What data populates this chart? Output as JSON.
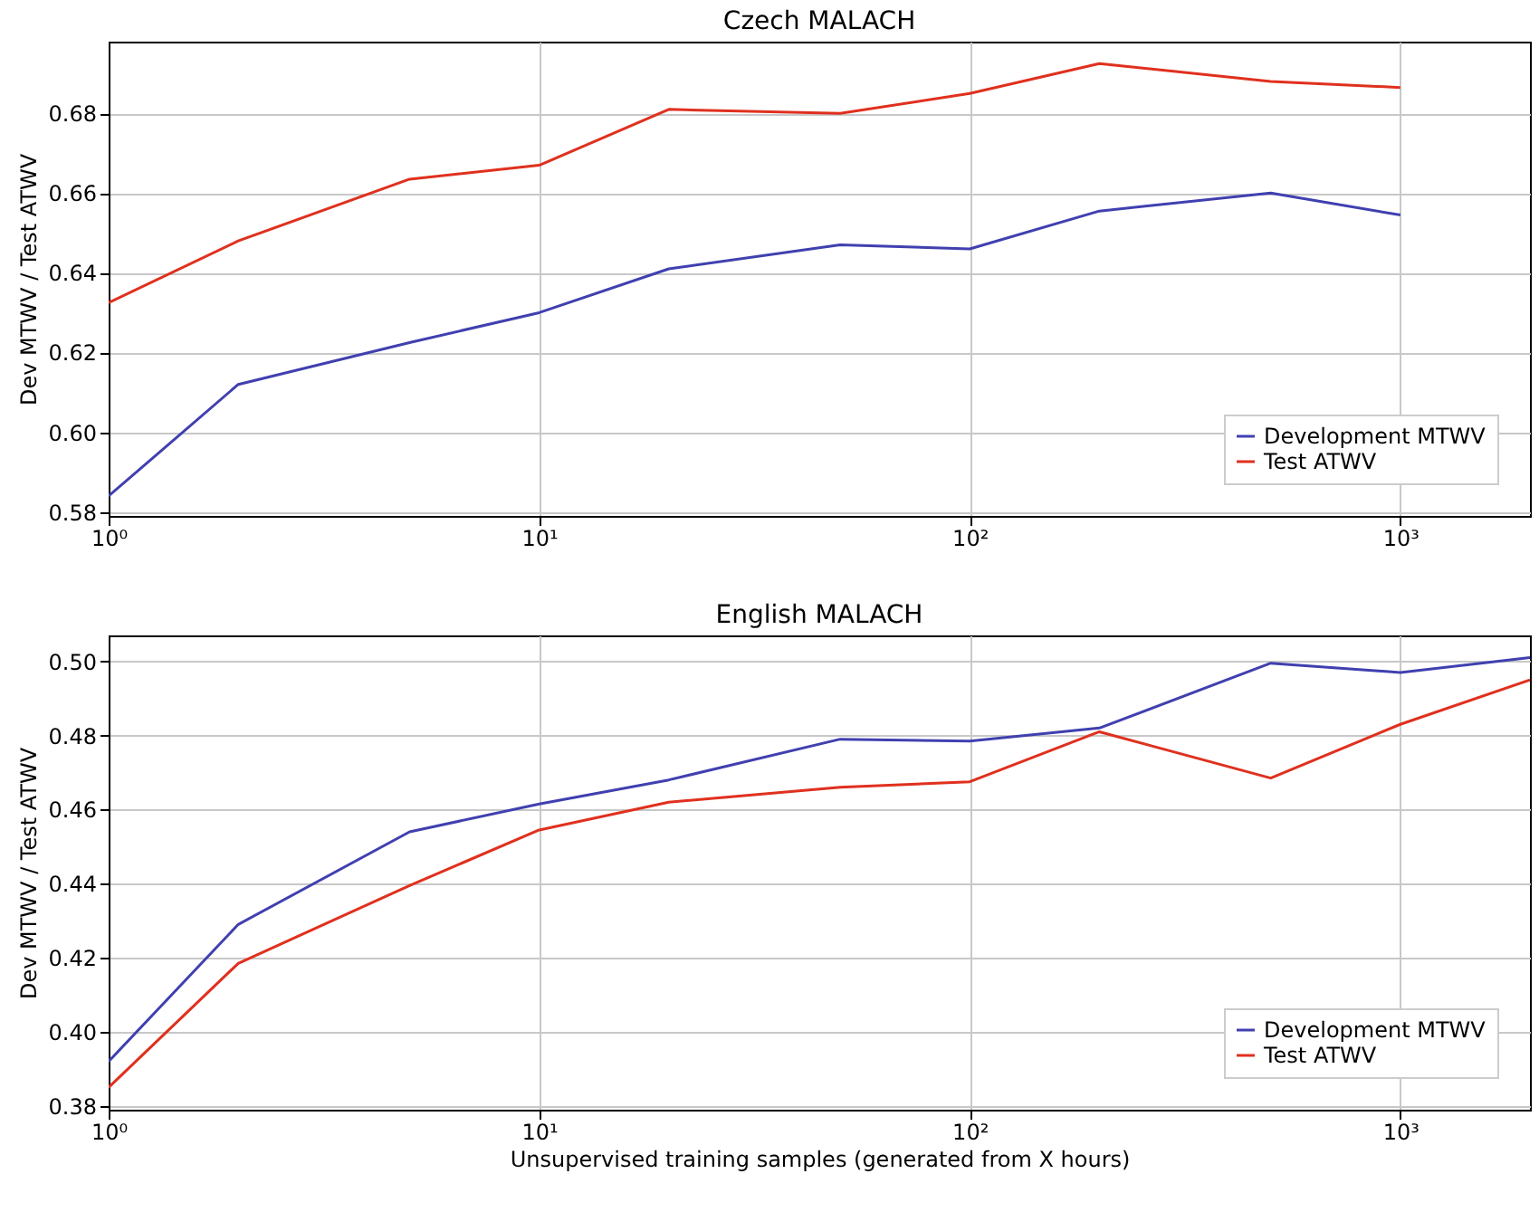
{
  "chart_data": [
    {
      "type": "line",
      "title": "Czech MALACH",
      "ylabel": "Dev MTWV / Test ATWV",
      "x": [
        1,
        2,
        5,
        10,
        20,
        50,
        100,
        200,
        500,
        1000
      ],
      "log": "x",
      "xlim": [
        1,
        2000
      ],
      "xticks": [
        {
          "value": 1,
          "label": "10⁰"
        },
        {
          "value": 10,
          "label": "10¹"
        },
        {
          "value": 100,
          "label": "10²"
        },
        {
          "value": 1000,
          "label": "10³"
        }
      ],
      "ylim": [
        0.579,
        0.698
      ],
      "yticks": [
        0.58,
        {
          "value": 0.6,
          "label": "0.60"
        },
        0.62,
        0.64,
        0.66,
        0.68
      ],
      "grid": true,
      "legend": "bottom right",
      "series": [
        {
          "name": "Development MTWV",
          "color": "#4040b0",
          "values": [
            0.584,
            0.612,
            0.6225,
            0.63,
            0.641,
            0.647,
            0.646,
            0.6555,
            0.66,
            0.6545
          ]
        },
        {
          "name": "Test ATWV",
          "color": "#e0301e",
          "values": [
            0.6325,
            0.648,
            0.6635,
            0.667,
            0.681,
            0.68,
            0.685,
            0.6925,
            0.688,
            0.6865
          ]
        }
      ]
    },
    {
      "type": "line",
      "title": "English MALACH",
      "xlabel": "Unsupervised training samples (generated from X hours)",
      "ylabel": "Dev MTWV / Test ATWV",
      "x": [
        1,
        2,
        5,
        10,
        20,
        50,
        100,
        200,
        500,
        1000,
        2000
      ],
      "log": "x",
      "xlim": [
        1,
        2000
      ],
      "xticks": [
        {
          "value": 1,
          "label": "10⁰"
        },
        {
          "value": 10,
          "label": "10¹"
        },
        {
          "value": 100,
          "label": "10²"
        },
        {
          "value": 1000,
          "label": "10³"
        }
      ],
      "ylim": [
        0.379,
        0.507
      ],
      "yticks": [
        0.38,
        {
          "value": 0.4,
          "label": "0.40"
        },
        0.42,
        0.44,
        0.46,
        0.48,
        {
          "value": 0.5,
          "label": "0.50"
        }
      ],
      "grid": true,
      "legend": "bottom right",
      "series": [
        {
          "name": "Development MTWV",
          "color": "#4040b0",
          "values": [
            0.392,
            0.429,
            0.454,
            0.4615,
            0.468,
            0.479,
            0.4785,
            0.482,
            0.4995,
            0.497,
            0.501
          ]
        },
        {
          "name": "Test ATWV",
          "color": "#e0301e",
          "values": [
            0.385,
            0.4185,
            0.4395,
            0.4545,
            0.462,
            0.466,
            0.4675,
            0.481,
            0.4685,
            0.483,
            0.495
          ]
        }
      ]
    }
  ]
}
